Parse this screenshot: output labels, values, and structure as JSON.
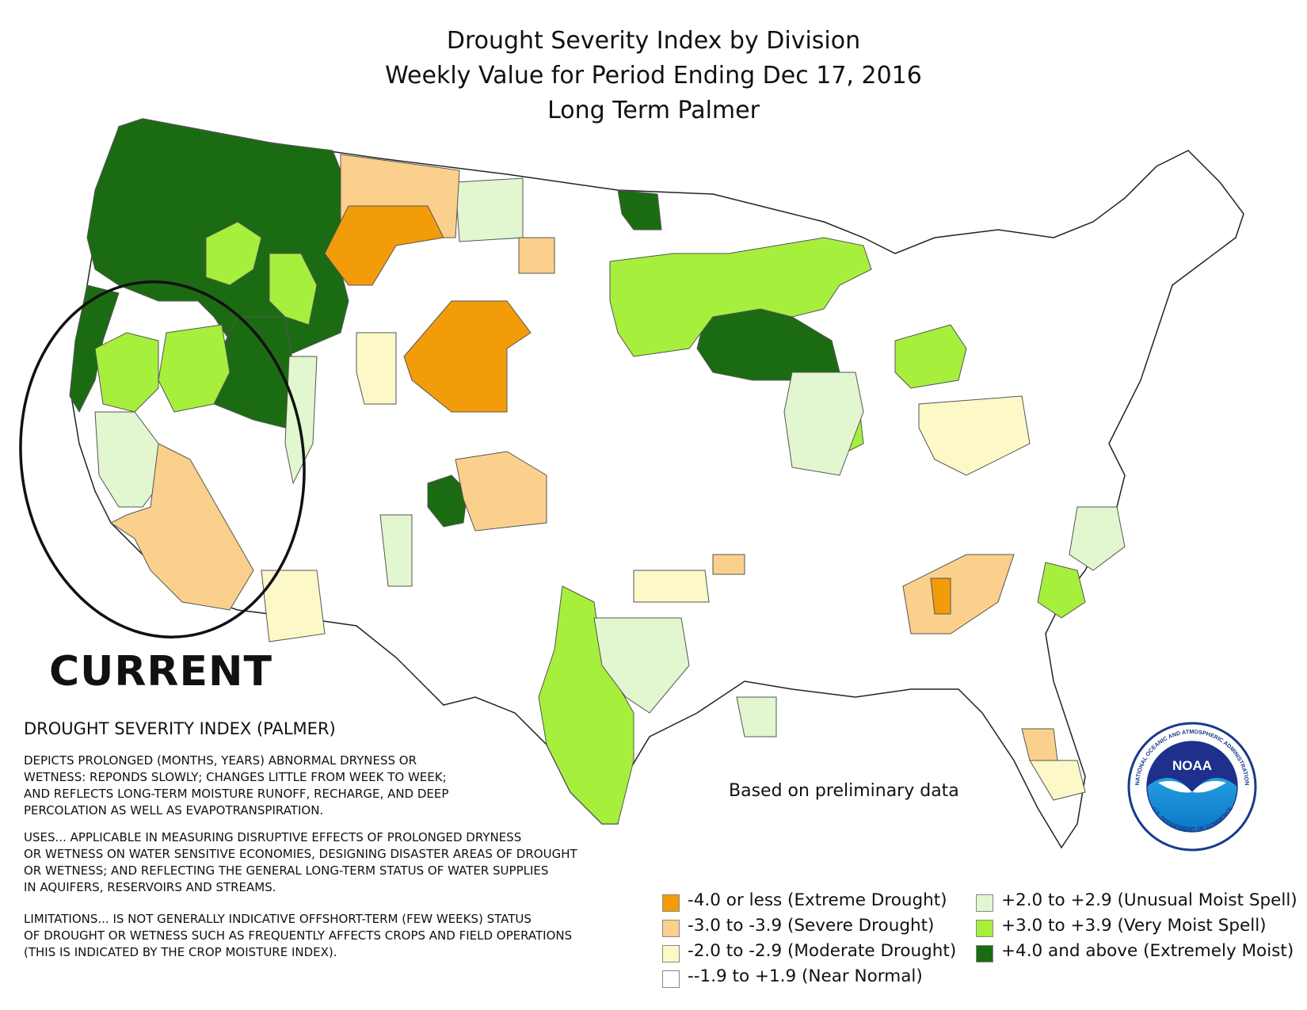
{
  "title": {
    "line1": "Drought Severity Index by Division",
    "line2": "Weekly Value for Period Ending Dec 17, 2016",
    "line3": "Long Term Palmer"
  },
  "annotation": "CURRENT",
  "index_heading": "DROUGHT SEVERITY INDEX (PALMER)",
  "description": [
    "DEPICTS PROLONGED (MONTHS, YEARS) ABNORMAL DRYNESS OR",
    "WETNESS: REPONDS SLOWLY; CHANGES LITTLE FROM WEEK TO WEEK;",
    "AND REFLECTS LONG-TERM MOISTURE RUNOFF, RECHARGE, AND DEEP",
    "PERCOLATION AS WELL AS EVAPOTRANSPIRATION."
  ],
  "uses": [
    "USES... APPLICABLE IN MEASURING DISRUPTIVE EFFECTS OF PROLONGED DRYNESS",
    "OR WETNESS ON WATER SENSITIVE ECONOMIES, DESIGNING DISASTER AREAS OF DROUGHT",
    "OR WETNESS; AND REFLECTING THE GENERAL LONG-TERM STATUS OF WATER SUPPLIES",
    "IN AQUIFERS, RESERVOIRS AND STREAMS."
  ],
  "limitations": [
    "LIMITATIONS... IS NOT GENERALLY INDICATIVE OFFSHORT-TERM (FEW WEEKS) STATUS",
    "OF DROUGHT OR WETNESS SUCH AS FREQUENTLY AFFECTS CROPS AND FIELD OPERATIONS",
    "(THIS IS INDICATED BY THE CROP MOISTURE INDEX)."
  ],
  "note": "Based on preliminary data",
  "legend": [
    {
      "label": "-4.0 or less (Extreme Drought)",
      "color": "#f39c0a"
    },
    {
      "label": "-3.0 to -3.9 (Severe Drought)",
      "color": "#fbd08c"
    },
    {
      "label": "-2.0 to -2.9 (Moderate Drought)",
      "color": "#fdf8c8"
    },
    {
      "label": "--1.9 to +1.9 (Near Normal)",
      "color": "#ffffff"
    },
    {
      "label": "+2.0 to +2.9 (Unusual Moist Spell)",
      "color": "#e2f6d0"
    },
    {
      "label": "+3.0 to +3.9 (Very Moist Spell)",
      "color": "#a6ef3c"
    },
    {
      "label": "+4.0 and above (Extremely Moist)",
      "color": "#1b6b12"
    }
  ],
  "logo": {
    "text": "NOAA",
    "ring_top": "NATIONAL OCEANIC AND ATMOSPHERIC ADMINISTRATION",
    "ring_bottom": "U.S. DEPARTMENT OF COMMERCE",
    "icon": "noaa-logo"
  }
}
